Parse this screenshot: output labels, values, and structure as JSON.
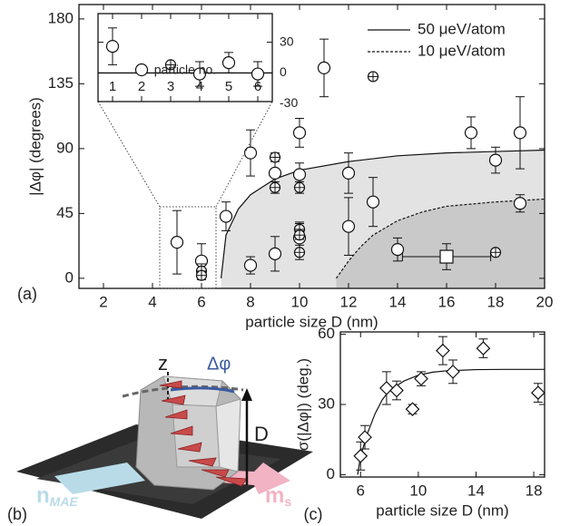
{
  "chart_data": [
    {
      "type": "scatter",
      "panel_label": "(a)",
      "xlabel": "particle size D (nm)",
      "ylabel": "|Δφ| (degrees)",
      "xlim": [
        1,
        20
      ],
      "ylim": [
        -7,
        190
      ],
      "xticks": [
        2,
        4,
        6,
        8,
        10,
        12,
        14,
        16,
        18,
        20
      ],
      "yticks": [
        0,
        45,
        90,
        135,
        180
      ],
      "series": [
        {
          "marker": "circle",
          "x": [
            5,
            6,
            7,
            8,
            8,
            9,
            9,
            10,
            10,
            10,
            11,
            12,
            12,
            13,
            14,
            17,
            18,
            19,
            19
          ],
          "values": [
            25,
            12,
            43,
            87,
            9,
            17,
            73,
            101,
            72,
            28,
            146,
            73,
            36,
            53,
            20,
            101,
            82,
            101,
            52
          ],
          "errors": [
            22,
            12,
            10,
            16,
            6,
            12,
            10,
            10,
            8,
            10,
            20,
            14,
            20,
            17,
            8,
            11,
            9,
            25,
            6
          ]
        },
        {
          "marker": "crossed",
          "x": [
            6,
            6,
            9,
            9,
            10,
            10,
            10,
            10,
            13,
            18
          ],
          "values": [
            5,
            2,
            63,
            84,
            63,
            34,
            30,
            18,
            140,
            18
          ],
          "errors": [
            5,
            3,
            4,
            3,
            4,
            5,
            3,
            5,
            2,
            2
          ]
        },
        {
          "marker": "square",
          "x": [
            16
          ],
          "values": [
            15
          ],
          "errors": [
            9
          ],
          "x_errors": [
            1.8
          ]
        }
      ],
      "curves": [
        {
          "name": "50 μeV/atom",
          "style": "solid",
          "fill": "#e3e3e3",
          "x": [
            6.8,
            7,
            7.5,
            8,
            9,
            10,
            12,
            14,
            16,
            18,
            20
          ],
          "values": [
            0,
            30,
            48,
            58,
            69,
            75,
            81,
            85,
            87,
            88,
            89
          ]
        },
        {
          "name": "10 μeV/atom",
          "style": "dashed",
          "fill": "#c9c9c9",
          "x": [
            11.5,
            12,
            12.5,
            13,
            14,
            15,
            16,
            18,
            20
          ],
          "values": [
            0,
            12,
            22,
            30,
            40,
            46,
            50,
            53,
            55
          ]
        }
      ]
    },
    {
      "type": "scatter",
      "xlabel": "particle no.",
      "xlim": [
        0.5,
        6.5
      ],
      "ylim": [
        -28,
        58
      ],
      "xticks": [
        1,
        2,
        3,
        4,
        5,
        6
      ],
      "yticks": [
        30,
        0,
        -30
      ],
      "zero_line": true,
      "series": [
        {
          "marker": "circle",
          "x": [
            1,
            2,
            4,
            5,
            6
          ],
          "values": [
            26,
            3,
            -1,
            10,
            -1
          ],
          "errors": [
            18,
            3,
            12,
            10,
            12
          ]
        },
        {
          "marker": "crossed",
          "x": [
            3
          ],
          "values": [
            8
          ],
          "errors": [
            2
          ]
        }
      ]
    },
    {
      "type": "scatter",
      "panel_label": "(c)",
      "xlabel": "particle size D (nm)",
      "ylabel": "σ(|Δφ|)  (deg.)",
      "xlim": [
        4.6,
        18.75
      ],
      "ylim": [
        -1,
        61
      ],
      "xticks": [
        6,
        10,
        14,
        18
      ],
      "yticks": [
        0,
        30,
        60
      ],
      "series": [
        {
          "marker": "diamond",
          "x": [
            6,
            6.3,
            7.8,
            8.5,
            9.6,
            10.2,
            11.7,
            12.4,
            14.5,
            18.3
          ],
          "values": [
            8,
            16,
            37,
            36,
            28,
            41,
            53,
            44,
            54,
            35
          ],
          "errors": [
            6,
            5,
            7,
            4,
            2,
            3,
            6,
            5,
            4,
            4
          ]
        }
      ],
      "curves": [
        {
          "style": "solid",
          "x": [
            5.8,
            6,
            6.5,
            7,
            7.5,
            8,
            9,
            10,
            11,
            12,
            14,
            16,
            18.75
          ],
          "values": [
            0,
            8,
            18,
            26,
            32,
            36,
            40,
            42.5,
            43.8,
            44.4,
            44.9,
            45,
            45
          ]
        }
      ]
    }
  ],
  "illustration": {
    "panel_label": "(b)",
    "axis": "z",
    "angle": "Δφ",
    "size": "D",
    "easy_axis": {
      "main": "n",
      "sub": "MAE"
    },
    "moment": {
      "main": "m",
      "sub": "s"
    }
  }
}
